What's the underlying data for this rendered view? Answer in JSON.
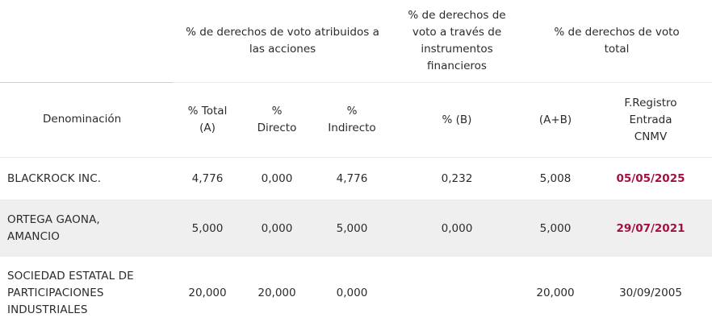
{
  "header": {
    "group_votos_acciones": "% de derechos de voto atribuidos a las acciones",
    "group_instrumentos": "% de derechos de voto a través de instrumentos financieros",
    "group_total": "% de derechos de voto total"
  },
  "columns": {
    "denominacion": "Denominación",
    "total": "% Total (A)",
    "directo": "% Directo",
    "indirecto": "% Indirecto",
    "b": "% (B)",
    "ab": "(A+B)",
    "fregistro": "F.Registro Entrada CNMV"
  },
  "rows": [
    {
      "name": "BLACKROCK INC.",
      "total": "4,776",
      "directo": "0,000",
      "indirecto": "4,776",
      "b": "0,232",
      "ab": "5,008",
      "fecha": "05/05/2025",
      "fecha_link": true
    },
    {
      "name": "ORTEGA GAONA, AMANCIO",
      "total": "5,000",
      "directo": "0,000",
      "indirecto": "5,000",
      "b": "0,000",
      "ab": "5,000",
      "fecha": "29/07/2021",
      "fecha_link": true
    },
    {
      "name": "SOCIEDAD ESTATAL DE PARTICIPACIONES INDUSTRIALES",
      "total": "20,000",
      "directo": "20,000",
      "indirecto": "0,000",
      "b": "",
      "ab": "20,000",
      "fecha": "30/09/2005",
      "fecha_link": false
    }
  ],
  "colors": {
    "link_date": "#a3123f",
    "row_alt_bg": "#efefef",
    "text": "#2b2b2b"
  }
}
